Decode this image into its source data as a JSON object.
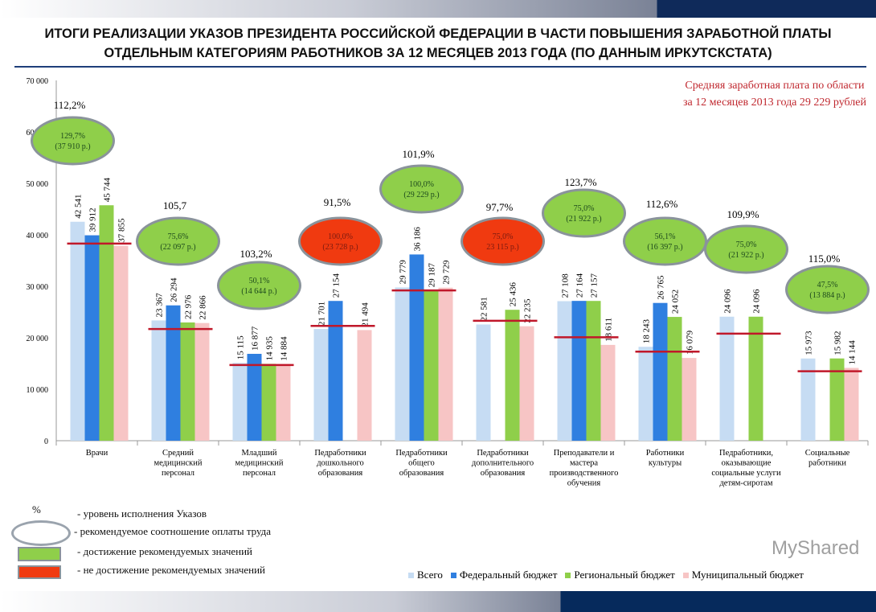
{
  "title_line1": "ИТОГИ РЕАЛИЗАЦИИ УКАЗОВ ПРЕЗИДЕНТА РОССИЙСКОЙ ФЕДЕРАЦИИ В ЧАСТИ ПОВЫШЕНИЯ ЗАРАБОТНОЙ ПЛАТЫ",
  "title_line2": "ОТДЕЛЬНЫМ КАТЕГОРИЯМ РАБОТНИКОВ ЗА 12 МЕСЯЦЕВ 2013 ГОДА (ПО ДАННЫМ ИРКУТСКСТАТА)",
  "note_line1": "Средняя заработная плата по области",
  "note_line2": "за 12 месяцев 2013 года 29 229 рублей",
  "colors": {
    "all": "#c6dcf3",
    "federal": "#2f7fe0",
    "regional": "#8fcf4a",
    "municipal": "#f7c5c5",
    "target_line": "#c0182a",
    "ellipse_ok": "#8fcf4a",
    "ellipse_fail": "#f03a10",
    "note": "#c0282f"
  },
  "chart_data": {
    "type": "bar",
    "ylim": [
      0,
      70000
    ],
    "yticks": [
      "0",
      "10 000",
      "20 000",
      "30 000",
      "40 000",
      "50 000",
      "60 000",
      "70 000"
    ],
    "categories": [
      [
        "Врачи"
      ],
      [
        "Средний",
        "медицинский",
        "персонал"
      ],
      [
        "Младший",
        "медицинский",
        "персонал"
      ],
      [
        "Педработники",
        "дошкольного",
        "образования"
      ],
      [
        "Педработники",
        "общего",
        "образования"
      ],
      [
        "Педработники",
        "дополнительного",
        "образования"
      ],
      [
        "Преподаватели и",
        "мастера",
        "производственного",
        "обучения"
      ],
      [
        "Работники",
        "культуры"
      ],
      [
        "Педработники,",
        "оказывающие",
        "социальные услуги",
        "детям-сиротам"
      ],
      [
        "Социальные",
        "работники"
      ]
    ],
    "series": [
      {
        "name": "Всего",
        "color": "#c6dcf3",
        "values": [
          42541,
          23367,
          15115,
          21701,
          29779,
          22581,
          27108,
          18243,
          24096,
          15973
        ],
        "labels": [
          "42 541",
          "23 367",
          "15 115",
          "21 701",
          "29 779",
          "22 581",
          "27 108",
          "18 243",
          "24 096",
          "15 973"
        ]
      },
      {
        "name": "Федеральный бюджет",
        "color": "#2f7fe0",
        "values": [
          39912,
          26294,
          16877,
          27154,
          36186,
          null,
          27164,
          26765,
          null,
          null
        ],
        "labels": [
          "39 912",
          "26 294",
          "16 877",
          "27 154",
          "36 186",
          "",
          "27 164",
          "26 765",
          "",
          ""
        ]
      },
      {
        "name": "Региональный бюджет",
        "color": "#8fcf4a",
        "values": [
          45744,
          22976,
          14935,
          null,
          29187,
          25436,
          27157,
          24052,
          24096,
          15982
        ],
        "labels": [
          "45 744",
          "22 976",
          "14 935",
          "",
          "29 187",
          "25 436",
          "27 157",
          "24 052",
          "24 096",
          "15 982"
        ]
      },
      {
        "name": "Муниципальный бюджет",
        "color": "#f7c5c5",
        "values": [
          37855,
          22866,
          14884,
          21494,
          29729,
          22235,
          18611,
          16079,
          null,
          14144
        ],
        "labels": [
          "37 855",
          "22 866",
          "14 884",
          "21 494",
          "29 729",
          "22 235",
          "18 611",
          "16 079",
          "",
          "14 144"
        ]
      }
    ],
    "target_line_values": [
      38300,
      21700,
      14700,
      22300,
      29200,
      23300,
      20100,
      17300,
      20800,
      13500
    ],
    "execution_pct": [
      "112,2%",
      "105,7",
      "103,2%",
      "91,5%",
      "101,9%",
      "97,7%",
      "123,7%",
      "112,6%",
      "109,9%",
      "115,0%"
    ],
    "ratio": [
      {
        "pct": "129,7%",
        "amount": "(37 910 р.)",
        "achieved": true
      },
      {
        "pct": "75,6%",
        "amount": "(22 097 р.)",
        "achieved": true
      },
      {
        "pct": "50,1%",
        "amount": "(14 644 р.)",
        "achieved": true
      },
      {
        "pct": "100,0%",
        "amount": "(23 728 р.)",
        "achieved": false
      },
      {
        "pct": "100,0%",
        "amount": "(29 229 р.)",
        "achieved": true
      },
      {
        "pct": "75,0%",
        "amount": "23 115 р.)",
        "achieved": false
      },
      {
        "pct": "75,0%",
        "amount": "(21 922 р.)",
        "achieved": true
      },
      {
        "pct": "56,1%",
        "amount": "(16 397 р.)",
        "achieved": true
      },
      {
        "pct": "75,0%",
        "amount": "(21 922 р.)",
        "achieved": true
      },
      {
        "pct": "47,5%",
        "amount": "(13 884 р.)",
        "achieved": true
      }
    ],
    "legend_position": "bottom-right"
  },
  "key": {
    "pct_symbol": "%",
    "pct": "- уровень исполнения  Указов",
    "ellipse": "- рекомендуемое соотношение оплаты труда",
    "green": "- достижение рекомендуемых значений",
    "red": "- не достижение рекомендуемых значений"
  },
  "watermark": "MyShared"
}
